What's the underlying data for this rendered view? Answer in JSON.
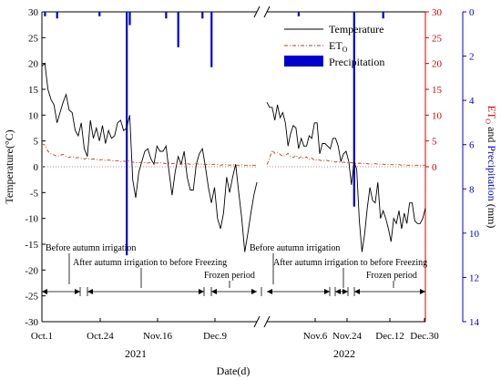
{
  "chart_data": {
    "type": "line",
    "xlabel": "Date(d)",
    "ylabel_left": "Temperature(°C)",
    "ylabel_right_parts": {
      "et": "ET",
      "sub": "O",
      "and": " and ",
      "precip": "Precipitation",
      "unit": " (mm)"
    },
    "yleft_ticks": [
      30,
      25,
      20,
      15,
      10,
      5,
      0,
      -5,
      -10,
      -15,
      -20,
      -25,
      -30
    ],
    "yleft_range": [
      -30,
      30
    ],
    "yright_et_ticks": [
      30,
      25,
      20,
      15,
      10,
      5,
      0
    ],
    "yright_precip_ticks": [
      0,
      2,
      4,
      6,
      8,
      10,
      12,
      14
    ],
    "yright_precip_range": [
      0,
      14
    ],
    "x_tick_labels": [
      "Oct.1",
      "Oct.24",
      "Nov.16",
      "Dec.9",
      "Nov.6",
      "Nov.24",
      "Dec.12",
      "Dec.30"
    ],
    "year_labels": [
      "2021",
      "2022"
    ],
    "legend": {
      "temperature": "Temperature",
      "et_main": "ET",
      "et_sub": "O",
      "precipitation": "Precipitation",
      "position": "top-right"
    },
    "colors": {
      "temperature": "#000000",
      "et": "#c0392b",
      "precipitation": "#0000cc",
      "right_et_axis": "#d00000",
      "right_precip_axis": "#0000cc"
    },
    "period_labels": [
      "Before autumn irrigation",
      "After autumn irrigation to before Freezing",
      "Frozen period",
      "Before autumn irrigation",
      "After autumn irrigation to before Freezing",
      "Frozen period"
    ],
    "period_arrow_y": -24,
    "series_2021": {
      "temperature": [
        19.5,
        20.0,
        15.0,
        13.0,
        12.0,
        8.5,
        10.5,
        12.5,
        14.0,
        11.0,
        10.5,
        7.0,
        6.0,
        8.5,
        3.5,
        2.0,
        9.0,
        5.5,
        7.5,
        5.0,
        8.0,
        4.5,
        7.0,
        5.5,
        6.0,
        8.5,
        9.0,
        7.0,
        7.5,
        10.0,
        -2.5,
        -6.0,
        -1.0,
        1.0,
        3.0,
        3.5,
        1.5,
        0.5,
        4.0,
        3.0,
        3.0,
        4.0,
        -1.0,
        -5.5,
        -1.0,
        2.0,
        0.5,
        3.0,
        -2.0,
        -4.5,
        -4.5,
        0.5,
        2.5,
        3.5,
        0.0,
        -4.0,
        -7.0,
        -4.0,
        -10.0,
        -12.0,
        -9.0,
        -2.0,
        -5.0,
        -2.0,
        0.5,
        -5.0,
        -10.0,
        -16.5,
        -13.0,
        -9.0,
        -5.5,
        -3.0
      ],
      "et": [
        4.5,
        4.2,
        3.0,
        2.5,
        2.3,
        2.0,
        2.2,
        2.4,
        2.0,
        1.8,
        2.0,
        1.7,
        1.8,
        1.6,
        1.5,
        1.7,
        1.4,
        1.5,
        1.4,
        1.3,
        1.4,
        1.2,
        1.3,
        1.2,
        1.1,
        1.2,
        1.0,
        1.1,
        1.0,
        1.2,
        0.9,
        0.8,
        0.8,
        0.9,
        0.8,
        0.7,
        0.9,
        0.8,
        0.7,
        0.8,
        0.7,
        0.6,
        0.7,
        0.6,
        0.7,
        0.6,
        0.5,
        0.6,
        0.6,
        0.5,
        0.5,
        0.6,
        0.5,
        0.5,
        0.4,
        0.5,
        0.4,
        0.5,
        0.4,
        0.3,
        0.4,
        0.4,
        0.3,
        0.4,
        0.3,
        0.3,
        0.4,
        0.3,
        0.3,
        0.3,
        0.3,
        0.3
      ],
      "precipitation": [
        [
          1,
          0.2
        ],
        [
          5,
          0.3
        ],
        [
          19,
          0.2
        ],
        [
          28,
          11.0
        ],
        [
          29,
          0.6
        ],
        [
          41,
          0.3
        ],
        [
          45,
          1.6
        ],
        [
          53,
          0.3
        ],
        [
          56,
          2.5
        ]
      ]
    },
    "series_2022": {
      "temperature": [
        12.5,
        11.5,
        11.5,
        9.0,
        12.0,
        9.5,
        10.5,
        8.5,
        4.0,
        6.5,
        8.0,
        7.5,
        3.5,
        5.5,
        4.0,
        4.0,
        6.0,
        5.5,
        8.5,
        8.5,
        2.5,
        4.5,
        4.5,
        4.0,
        3.5,
        5.5,
        5.5,
        4.0,
        1.0,
        2.5,
        3.0,
        1.0,
        -3.5,
        1.0,
        -0.5,
        -10.5,
        -16.5,
        -13.0,
        -8.0,
        -4.0,
        -6.5,
        -7.0,
        -3.0,
        -10.0,
        -8.5,
        -10.0,
        -12.0,
        -14.5,
        -10.0,
        -11.0,
        -8.5,
        -12.0,
        -9.0,
        -11.0,
        -7.0,
        -7.0,
        -10.5,
        -11.0,
        -11.0,
        -10.0,
        -8.0
      ],
      "et": [
        0.4,
        1.6,
        3.2,
        2.6,
        2.8,
        2.4,
        2.0,
        2.2,
        2.6,
        2.0,
        1.8,
        2.2,
        1.6,
        2.0,
        1.6,
        1.9,
        1.4,
        1.7,
        1.2,
        1.4,
        1.3,
        1.1,
        1.3,
        1.2,
        1.0,
        1.1,
        0.9,
        1.0,
        0.8,
        0.9,
        0.8,
        0.7,
        0.8,
        0.7,
        0.6,
        0.7,
        0.6,
        0.6,
        0.6,
        0.5,
        0.5,
        0.6,
        0.5,
        0.5,
        0.5,
        0.4,
        0.5,
        0.4,
        0.4,
        0.4,
        0.4,
        0.3,
        0.4,
        0.3,
        0.3,
        0.3,
        0.3,
        0.3,
        0.3,
        0.3,
        0.3
      ],
      "precipitation": [
        [
          12,
          0.2
        ],
        [
          33,
          8.8
        ],
        [
          44,
          0.3
        ]
      ]
    }
  }
}
